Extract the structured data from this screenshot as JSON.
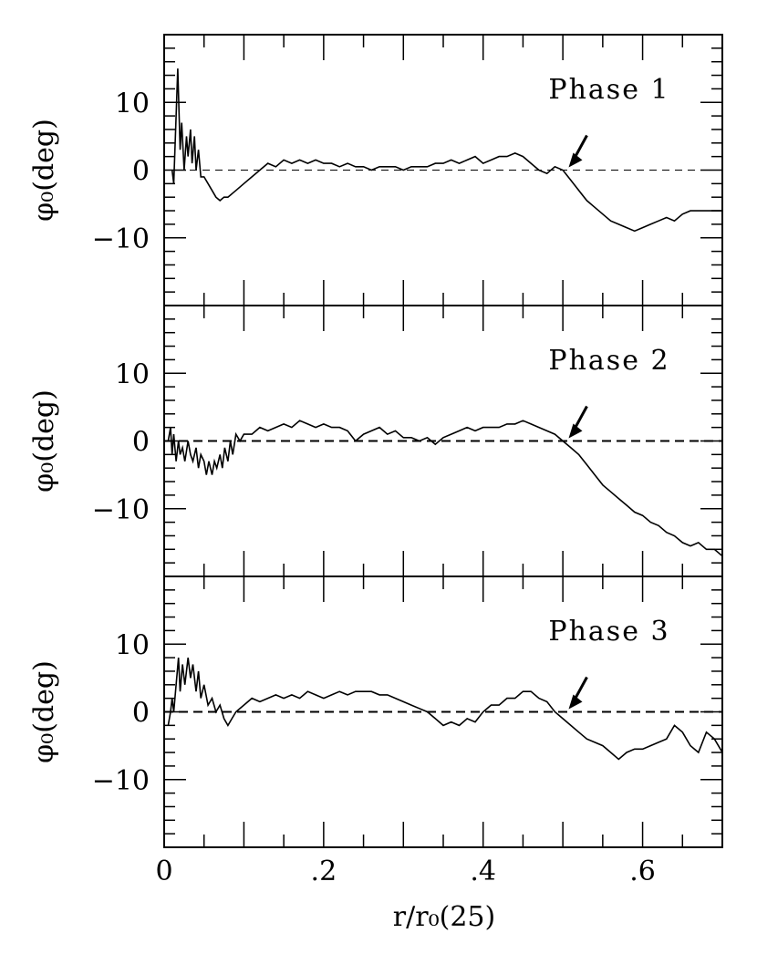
{
  "chart_data": {
    "type": "line",
    "xlabel": "r/r₀(25)",
    "xlim": [
      0,
      0.7
    ],
    "x_tick_labels": [
      "0",
      ".2",
      ".4",
      ".6"
    ],
    "x_tick_values": [
      0,
      0.2,
      0.4,
      0.6
    ],
    "panels": [
      {
        "label": "Phase 1",
        "ylabel": "φ₀(deg)",
        "ylim": [
          -20,
          20
        ],
        "y_tick_labels": [
          "10",
          "0",
          "-10"
        ],
        "y_tick_values": [
          10,
          0,
          -10
        ],
        "reference_line": {
          "y": 0,
          "style": "dashed"
        },
        "arrow_x": 0.505,
        "series": {
          "x": [
            0.01,
            0.012,
            0.015,
            0.017,
            0.02,
            0.022,
            0.025,
            0.028,
            0.03,
            0.033,
            0.035,
            0.038,
            0.04,
            0.043,
            0.046,
            0.05,
            0.055,
            0.06,
            0.065,
            0.07,
            0.075,
            0.08,
            0.09,
            0.1,
            0.11,
            0.12,
            0.13,
            0.14,
            0.15,
            0.16,
            0.17,
            0.18,
            0.19,
            0.2,
            0.21,
            0.22,
            0.23,
            0.24,
            0.25,
            0.26,
            0.27,
            0.28,
            0.29,
            0.3,
            0.31,
            0.32,
            0.33,
            0.34,
            0.35,
            0.36,
            0.37,
            0.38,
            0.39,
            0.4,
            0.41,
            0.42,
            0.43,
            0.44,
            0.45,
            0.46,
            0.47,
            0.48,
            0.49,
            0.5,
            0.51,
            0.52,
            0.53,
            0.54,
            0.55,
            0.56,
            0.57,
            0.58,
            0.59,
            0.6,
            0.61,
            0.62,
            0.63,
            0.64,
            0.65,
            0.66,
            0.67,
            0.68,
            0.69,
            0.7
          ],
          "y": [
            0,
            -2,
            8,
            15,
            3,
            7,
            0,
            5,
            2,
            6,
            1,
            5,
            0,
            3,
            -1,
            -1,
            -2,
            -3,
            -4,
            -4.5,
            -4,
            -4,
            -3,
            -2,
            -1,
            0,
            1,
            0.5,
            1.5,
            1,
            1.5,
            1,
            1.5,
            1,
            1,
            0.5,
            1,
            0.5,
            0.5,
            0,
            0.5,
            0.5,
            0.5,
            0,
            0.5,
            0.5,
            0.5,
            1,
            1,
            1.5,
            1,
            1.5,
            2,
            1,
            1.5,
            2,
            2,
            2.5,
            2,
            1,
            0,
            -0.5,
            0.5,
            0,
            -1.5,
            -3,
            -4.5,
            -5.5,
            -6.5,
            -7.5,
            -8,
            -8.5,
            -9,
            -8.5,
            -8,
            -7.5,
            -7,
            -7.5,
            -6.5,
            -6,
            -6,
            -6,
            -6,
            -6
          ]
        }
      },
      {
        "label": "Phase 2",
        "ylabel": "φ₀(deg)",
        "ylim": [
          -20,
          20
        ],
        "y_tick_labels": [
          "10",
          "0",
          "-10"
        ],
        "y_tick_values": [
          10,
          0,
          -10
        ],
        "reference_line": {
          "y": 0,
          "style": "dashed"
        },
        "arrow_x": 0.505,
        "series": {
          "x": [
            0.005,
            0.008,
            0.01,
            0.012,
            0.015,
            0.018,
            0.02,
            0.023,
            0.026,
            0.03,
            0.033,
            0.036,
            0.04,
            0.043,
            0.046,
            0.05,
            0.053,
            0.056,
            0.06,
            0.063,
            0.066,
            0.07,
            0.073,
            0.076,
            0.08,
            0.083,
            0.086,
            0.09,
            0.095,
            0.1,
            0.11,
            0.12,
            0.13,
            0.14,
            0.15,
            0.16,
            0.17,
            0.18,
            0.19,
            0.2,
            0.21,
            0.22,
            0.23,
            0.24,
            0.25,
            0.26,
            0.27,
            0.28,
            0.29,
            0.3,
            0.31,
            0.32,
            0.33,
            0.34,
            0.35,
            0.36,
            0.37,
            0.38,
            0.39,
            0.4,
            0.41,
            0.42,
            0.43,
            0.44,
            0.45,
            0.46,
            0.47,
            0.48,
            0.49,
            0.5,
            0.51,
            0.52,
            0.53,
            0.54,
            0.55,
            0.56,
            0.57,
            0.58,
            0.59,
            0.6,
            0.61,
            0.62,
            0.63,
            0.64,
            0.65,
            0.66,
            0.67,
            0.68,
            0.69,
            0.7
          ],
          "y": [
            0,
            2,
            -2,
            1,
            -3,
            0,
            -2,
            -1,
            -3,
            0,
            -2,
            -3,
            -1,
            -4,
            -2,
            -3,
            -5,
            -3,
            -5,
            -3,
            -4,
            -2,
            -4,
            -1,
            -3,
            0,
            -2,
            1,
            0,
            1,
            1,
            2,
            1.5,
            2,
            2.5,
            2,
            3,
            2.5,
            2,
            2.5,
            2,
            2,
            1.5,
            0,
            1,
            1.5,
            2,
            1,
            1.5,
            0.5,
            0.5,
            0,
            0.5,
            -0.5,
            0.5,
            1,
            1.5,
            2,
            1.5,
            2,
            2,
            2,
            2.5,
            2.5,
            3,
            2.5,
            2,
            1.5,
            1,
            0,
            -1,
            -2,
            -3.5,
            -5,
            -6.5,
            -7.5,
            -8.5,
            -9.5,
            -10.5,
            -11,
            -12,
            -12.5,
            -13.5,
            -14,
            -15,
            -15.5,
            -15,
            -16,
            -16,
            -17
          ]
        }
      },
      {
        "label": "Phase 3",
        "ylabel": "φ₀(deg)",
        "ylim": [
          -20,
          20
        ],
        "y_tick_labels": [
          "10",
          "0",
          "-10"
        ],
        "y_tick_values": [
          10,
          0,
          -10
        ],
        "reference_line": {
          "y": 0,
          "style": "dashed"
        },
        "arrow_x": 0.505,
        "series": {
          "x": [
            0.005,
            0.008,
            0.01,
            0.012,
            0.015,
            0.018,
            0.02,
            0.023,
            0.026,
            0.03,
            0.033,
            0.036,
            0.04,
            0.043,
            0.046,
            0.05,
            0.055,
            0.06,
            0.065,
            0.07,
            0.075,
            0.08,
            0.085,
            0.09,
            0.1,
            0.11,
            0.12,
            0.13,
            0.14,
            0.15,
            0.16,
            0.17,
            0.18,
            0.19,
            0.2,
            0.21,
            0.22,
            0.23,
            0.24,
            0.25,
            0.26,
            0.27,
            0.28,
            0.29,
            0.3,
            0.31,
            0.32,
            0.33,
            0.34,
            0.35,
            0.36,
            0.37,
            0.38,
            0.39,
            0.4,
            0.41,
            0.42,
            0.43,
            0.44,
            0.45,
            0.46,
            0.47,
            0.48,
            0.49,
            0.5,
            0.51,
            0.52,
            0.53,
            0.54,
            0.55,
            0.56,
            0.57,
            0.58,
            0.59,
            0.6,
            0.61,
            0.62,
            0.63,
            0.64,
            0.65,
            0.66,
            0.67,
            0.68,
            0.69,
            0.7
          ],
          "y": [
            -2,
            0,
            2,
            0,
            4,
            8,
            3,
            7,
            4,
            8,
            5,
            7,
            3,
            6,
            2,
            4,
            1,
            2,
            0,
            1,
            -1,
            -2,
            -1,
            0,
            1,
            2,
            1.5,
            2,
            2.5,
            2,
            2.5,
            2,
            3,
            2.5,
            2,
            2.5,
            3,
            2.5,
            3,
            3,
            3,
            2.5,
            2.5,
            2,
            1.5,
            1,
            0.5,
            0,
            -1,
            -2,
            -1.5,
            -2,
            -1,
            -1.5,
            0,
            1,
            1,
            2,
            2,
            3,
            3,
            2,
            1.5,
            0,
            -1,
            -2,
            -3,
            -4,
            -4.5,
            -5,
            -6,
            -7,
            -6,
            -5.5,
            -5.5,
            -5,
            -4.5,
            -4,
            -2,
            -3,
            -5,
            -6,
            -3,
            -4,
            -6
          ]
        }
      }
    ]
  }
}
